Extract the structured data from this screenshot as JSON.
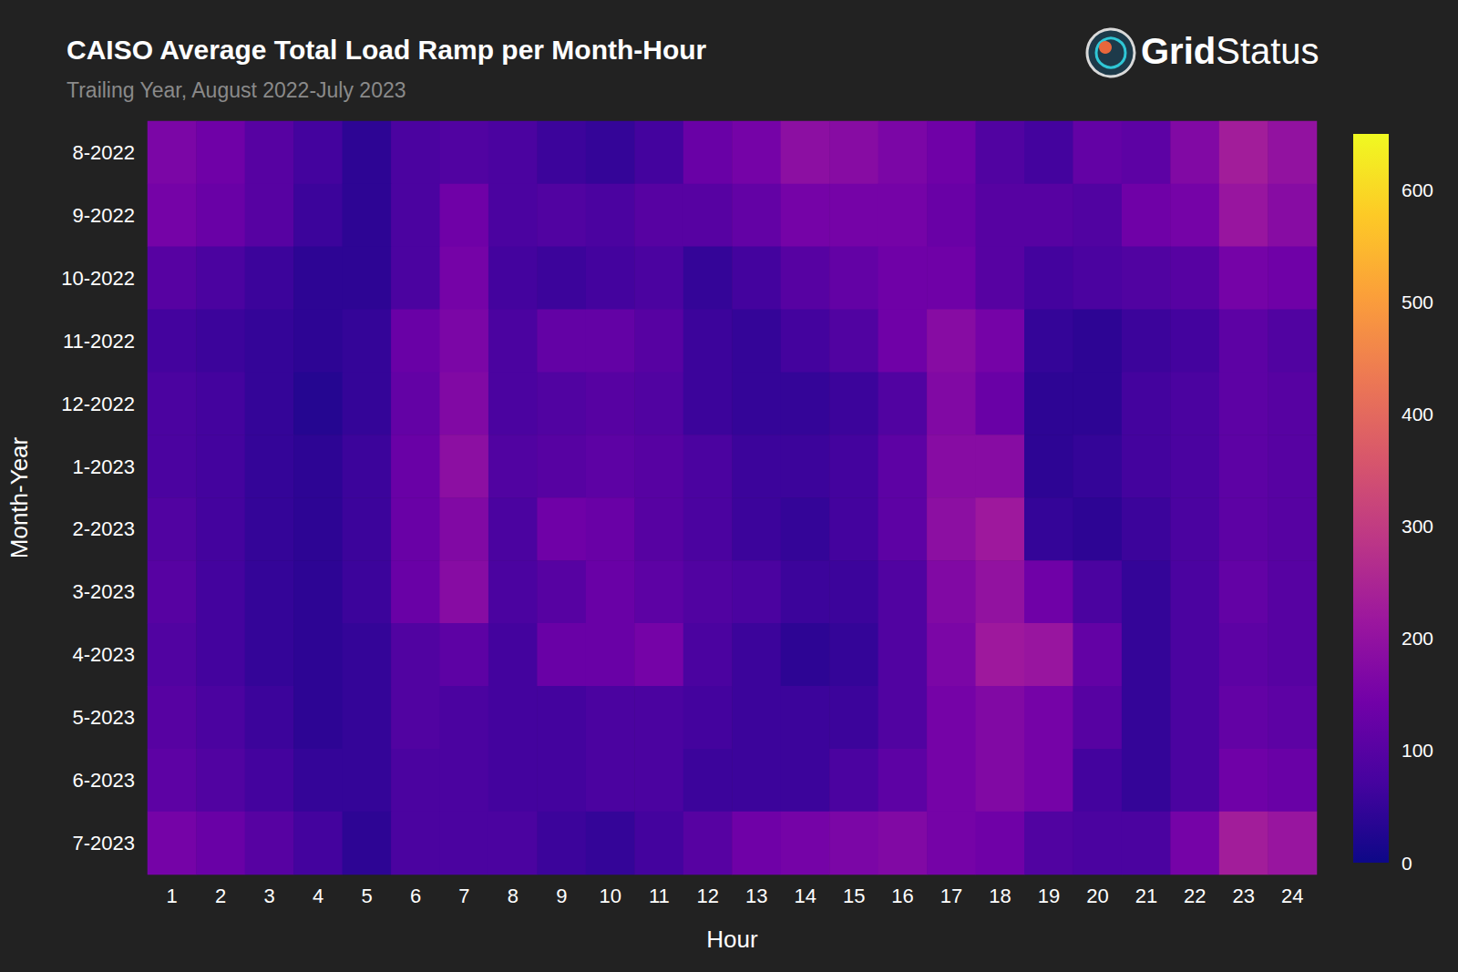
{
  "chart_data": {
    "type": "heatmap",
    "title": "CAISO Average Total Load Ramp per Month-Hour",
    "subtitle": "Trailing Year, August 2022-July 2023",
    "logo": {
      "bold": "Grid",
      "regular": "Status"
    },
    "x_label": "Hour",
    "y_label": "Month-Year",
    "x": [
      1,
      2,
      3,
      4,
      5,
      6,
      7,
      8,
      9,
      10,
      11,
      12,
      13,
      14,
      15,
      16,
      17,
      18,
      19,
      20,
      21,
      22,
      23,
      24
    ],
    "y": [
      "8-2022",
      "9-2022",
      "10-2022",
      "11-2022",
      "12-2022",
      "1-2023",
      "2-2023",
      "3-2023",
      "4-2023",
      "5-2023",
      "6-2023",
      "7-2023"
    ],
    "cells": [
      [
        160,
        140,
        100,
        70,
        40,
        80,
        90,
        80,
        60,
        50,
        70,
        130,
        150,
        190,
        180,
        160,
        140,
        90,
        70,
        120,
        110,
        170,
        230,
        200
      ],
      [
        150,
        130,
        100,
        60,
        40,
        80,
        140,
        80,
        90,
        80,
        100,
        100,
        120,
        150,
        150,
        150,
        130,
        100,
        100,
        90,
        140,
        150,
        210,
        180
      ],
      [
        100,
        80,
        60,
        40,
        40,
        80,
        150,
        70,
        60,
        70,
        80,
        50,
        70,
        100,
        120,
        140,
        140,
        100,
        70,
        80,
        90,
        100,
        150,
        140
      ],
      [
        70,
        60,
        50,
        40,
        50,
        130,
        160,
        80,
        120,
        120,
        100,
        60,
        50,
        70,
        90,
        140,
        180,
        150,
        50,
        40,
        60,
        70,
        110,
        90
      ],
      [
        80,
        70,
        50,
        30,
        50,
        120,
        170,
        80,
        90,
        100,
        90,
        60,
        50,
        50,
        60,
        90,
        170,
        130,
        40,
        40,
        70,
        80,
        110,
        100
      ],
      [
        80,
        70,
        50,
        40,
        60,
        130,
        190,
        90,
        100,
        110,
        100,
        80,
        60,
        60,
        70,
        110,
        180,
        180,
        40,
        50,
        70,
        80,
        110,
        100
      ],
      [
        90,
        70,
        50,
        40,
        60,
        130,
        170,
        80,
        140,
        130,
        100,
        80,
        60,
        50,
        70,
        110,
        190,
        220,
        50,
        40,
        60,
        80,
        110,
        100
      ],
      [
        100,
        70,
        50,
        40,
        60,
        130,
        180,
        80,
        100,
        130,
        110,
        90,
        80,
        60,
        60,
        90,
        170,
        200,
        140,
        80,
        50,
        80,
        120,
        100
      ],
      [
        90,
        70,
        50,
        40,
        50,
        90,
        110,
        70,
        130,
        130,
        150,
        80,
        60,
        40,
        50,
        90,
        160,
        220,
        210,
        120,
        50,
        80,
        110,
        100
      ],
      [
        100,
        80,
        60,
        40,
        50,
        90,
        80,
        70,
        70,
        80,
        80,
        70,
        60,
        60,
        60,
        90,
        150,
        170,
        150,
        100,
        50,
        80,
        120,
        110
      ],
      [
        110,
        90,
        70,
        50,
        50,
        80,
        80,
        70,
        70,
        80,
        80,
        60,
        60,
        60,
        80,
        110,
        150,
        170,
        150,
        70,
        50,
        80,
        140,
        130
      ],
      [
        150,
        130,
        100,
        70,
        40,
        80,
        80,
        80,
        60,
        50,
        70,
        100,
        140,
        150,
        160,
        170,
        150,
        140,
        90,
        80,
        80,
        150,
        230,
        210
      ]
    ],
    "colorbar": {
      "range": [
        0,
        650
      ],
      "ticks": [
        0,
        100,
        200,
        300,
        400,
        500,
        600
      ]
    }
  }
}
